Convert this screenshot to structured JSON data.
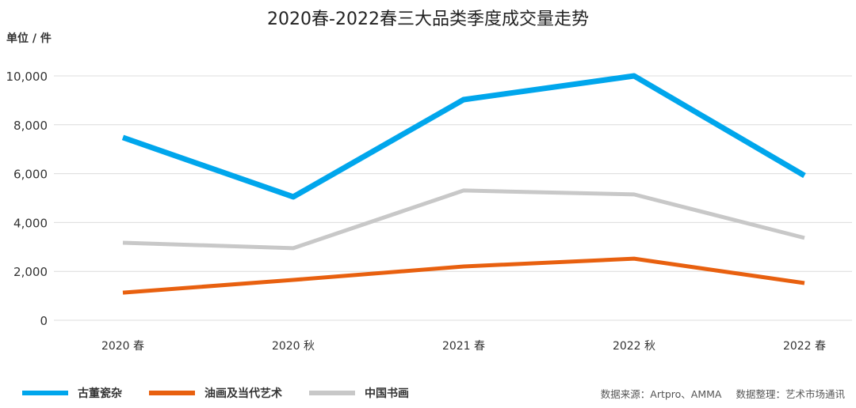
{
  "chart_data": {
    "type": "line",
    "title": "2020春-2022春三大品类季度成交量走势",
    "ylabel": "单位 / 件",
    "categories": [
      "2020 春",
      "2020 秋",
      "2021 春",
      "2022 秋",
      "2022 春"
    ],
    "ylim": [
      0,
      10000
    ],
    "yticks": [
      0,
      2000,
      4000,
      6000,
      8000,
      10000
    ],
    "ytick_labels": [
      "0",
      "2,000",
      "4,000",
      "6,000",
      "8,000",
      "10,000"
    ],
    "grid": true,
    "legend_placement": "bottom-left",
    "series": [
      {
        "name": "古董瓷杂",
        "color": "#00a6ec",
        "values": [
          7480,
          5050,
          9030,
          10000,
          5920
        ]
      },
      {
        "name": "油画及当代艺术",
        "color": "#e8600f",
        "values": [
          1130,
          1650,
          2200,
          2520,
          1520
        ]
      },
      {
        "name": "中国书画",
        "color": "#c8c8c8",
        "values": [
          3170,
          2950,
          5310,
          5150,
          3370
        ]
      }
    ]
  },
  "footer": {
    "source": "数据来源：Artpro、AMMA",
    "compiled": "数据整理：艺术市场通讯"
  }
}
